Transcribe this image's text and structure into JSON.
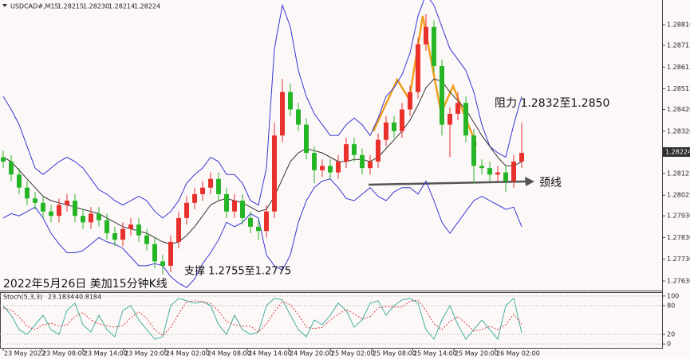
{
  "chart_data": [
    {
      "type": "candlestick",
      "title": "USDCAD#,M15",
      "quote": [
        1.28215,
        {
          "value": 1.2823,
          "label": "1.28230"
        },
        1.28214,
        1.28224
      ],
      "up_color": "#e8312c",
      "down_color": "#26b526",
      "open": [
        1.282,
        1.2818,
        1.2812,
        1.2806,
        1.2801,
        1.2799,
        1.2795,
        1.2793,
        1.2798,
        1.28,
        1.2793,
        1.279,
        1.2794,
        1.2791,
        1.2785,
        1.2782,
        1.2787,
        1.2789,
        1.2784,
        1.278,
        1.2772,
        1.277,
        1.2781,
        1.2792,
        1.2799,
        1.2803,
        1.2806,
        1.281,
        1.2803,
        1.2795,
        1.28,
        1.2792,
        1.2788,
        1.2786,
        1.2795,
        1.283,
        1.285,
        1.2842,
        1.2835,
        1.2822,
        1.2814,
        1.2816,
        1.2813,
        1.2818,
        1.2826,
        1.2821,
        1.2815,
        1.2818,
        1.2828,
        1.2836,
        1.2832,
        1.2842,
        1.285,
        1.2872,
        1.288,
        1.2862,
        1.2835,
        1.284,
        1.2845,
        1.283,
        1.2816,
        1.2815,
        1.2812,
        1.2813,
        1.2809,
        1.2818
      ],
      "high": [
        1.2823,
        1.2821,
        1.2815,
        1.2809,
        1.2804,
        1.2802,
        1.2798,
        1.2801,
        1.2803,
        1.2803,
        1.2796,
        1.2797,
        1.2797,
        1.2794,
        1.2788,
        1.279,
        1.2792,
        1.2792,
        1.2787,
        1.2783,
        1.2775,
        1.2784,
        1.2795,
        1.2802,
        1.2806,
        1.2809,
        1.2813,
        1.2813,
        1.2806,
        1.2803,
        1.2803,
        1.2795,
        1.2791,
        1.2798,
        1.2836,
        1.2856,
        1.2854,
        1.2845,
        1.2838,
        1.2825,
        1.2819,
        1.2819,
        1.2821,
        1.2829,
        1.2829,
        1.2824,
        1.2821,
        1.2831,
        1.2839,
        1.2839,
        1.2845,
        1.2853,
        1.2875,
        1.2886,
        1.2883,
        1.2865,
        1.2843,
        1.285,
        1.2848,
        1.2833,
        1.2819,
        1.2818,
        1.2816,
        1.2816,
        1.2821,
        1.2836
      ],
      "low": [
        1.2815,
        1.2809,
        1.2803,
        1.2798,
        1.2796,
        1.2792,
        1.279,
        1.279,
        1.2795,
        1.279,
        1.2787,
        1.2787,
        1.2788,
        1.2782,
        1.2779,
        1.2779,
        1.2784,
        1.2781,
        1.2777,
        1.2769,
        1.2766,
        1.2767,
        1.2778,
        1.2789,
        1.2796,
        1.28,
        1.2803,
        1.28,
        1.2792,
        1.2792,
        1.2789,
        1.2785,
        1.2782,
        1.2783,
        1.2792,
        1.2827,
        1.2839,
        1.2832,
        1.2819,
        1.2808,
        1.2811,
        1.281,
        1.281,
        1.2815,
        1.2818,
        1.2812,
        1.2812,
        1.2815,
        1.2825,
        1.2829,
        1.2829,
        1.2839,
        1.2847,
        1.2869,
        1.2859,
        1.283,
        1.282,
        1.2837,
        1.2827,
        1.2808,
        1.2812,
        1.2809,
        1.2809,
        1.2804,
        1.2806,
        1.2815
      ],
      "close": [
        1.2818,
        1.2812,
        1.2806,
        1.2801,
        1.2799,
        1.2795,
        1.2793,
        1.2798,
        1.28,
        1.2793,
        1.279,
        1.2794,
        1.2791,
        1.2785,
        1.2782,
        1.2787,
        1.2789,
        1.2784,
        1.278,
        1.2772,
        1.277,
        1.2781,
        1.2792,
        1.2799,
        1.2803,
        1.2806,
        1.281,
        1.2803,
        1.2795,
        1.28,
        1.2792,
        1.2788,
        1.2786,
        1.2795,
        1.283,
        1.285,
        1.2842,
        1.2835,
        1.2822,
        1.2814,
        1.2816,
        1.2813,
        1.2818,
        1.2826,
        1.2821,
        1.2815,
        1.2818,
        1.2828,
        1.2836,
        1.2832,
        1.2842,
        1.285,
        1.2872,
        1.288,
        1.2862,
        1.2835,
        1.284,
        1.2845,
        1.283,
        1.2816,
        1.2815,
        1.2812,
        1.2813,
        1.2809,
        1.2818,
        1.2822
      ],
      "bands": {
        "color": "#3636d4",
        "middle_color": "#333333",
        "upper": [
          1.2848,
          1.2842,
          1.2835,
          1.2825,
          1.2815,
          1.2812,
          1.2815,
          1.2818,
          1.282,
          1.2818,
          1.2815,
          1.281,
          1.2805,
          1.2803,
          1.28,
          1.2798,
          1.28,
          1.2802,
          1.28,
          1.2795,
          1.2792,
          1.2795,
          1.28,
          1.2808,
          1.2812,
          1.2815,
          1.282,
          1.2818,
          1.2812,
          1.2812,
          1.2808,
          1.28,
          1.2798,
          1.2815,
          1.287,
          1.289,
          1.288,
          1.286,
          1.2848,
          1.284,
          1.2835,
          1.283,
          1.283,
          1.2835,
          1.2838,
          1.2835,
          1.283,
          1.2838,
          1.2848,
          1.2852,
          1.2858,
          1.2868,
          1.2885,
          1.2895,
          1.289,
          1.288,
          1.287,
          1.2865,
          1.286,
          1.285,
          1.2835,
          1.2825,
          1.2822,
          1.282,
          1.2835,
          1.2848
        ],
        "middle": [
          1.282,
          1.2818,
          1.2814,
          1.281,
          1.2806,
          1.2802,
          1.28,
          1.2799,
          1.2798,
          1.2797,
          1.2796,
          1.2795,
          1.2794,
          1.2792,
          1.279,
          1.2788,
          1.2787,
          1.2786,
          1.2785,
          1.2783,
          1.2781,
          1.278,
          1.2781,
          1.2784,
          1.2788,
          1.2793,
          1.2798,
          1.28,
          1.2801,
          1.28,
          1.2799,
          1.2797,
          1.2795,
          1.2796,
          1.2802,
          1.281,
          1.2818,
          1.2822,
          1.2824,
          1.2823,
          1.2822,
          1.282,
          1.2818,
          1.2818,
          1.2819,
          1.2819,
          1.2818,
          1.282,
          1.2824,
          1.2828,
          1.2832,
          1.2837,
          1.2844,
          1.2852,
          1.2856,
          1.2855,
          1.285,
          1.2846,
          1.2842,
          1.2836,
          1.283,
          1.2825,
          1.282,
          1.2816,
          1.2816,
          1.2818
        ],
        "lower": [
          1.2792,
          1.2794,
          1.2793,
          1.2795,
          1.2797,
          1.2792,
          1.2785,
          1.278,
          1.2776,
          1.2776,
          1.2777,
          1.278,
          1.2783,
          1.2781,
          1.278,
          1.2778,
          1.2774,
          1.277,
          1.277,
          1.2771,
          1.277,
          1.2765,
          1.2762,
          1.276,
          1.2764,
          1.2771,
          1.2776,
          1.2782,
          1.279,
          1.2788,
          1.279,
          1.2794,
          1.2792,
          1.2775,
          1.277,
          1.2768,
          1.2775,
          1.279,
          1.28,
          1.2806,
          1.2809,
          1.281,
          1.2806,
          1.2801,
          1.28,
          1.2803,
          1.2806,
          1.2802,
          1.28,
          1.2804,
          1.2806,
          1.2806,
          1.2803,
          1.2809,
          1.28,
          1.279,
          1.2785,
          1.279,
          1.2795,
          1.28,
          1.2802,
          1.28,
          1.2798,
          1.2796,
          1.2797,
          1.2788
        ]
      },
      "ylim": [
        1.27586,
        1.28924
      ],
      "yticks": [
        {
          "value": 1.2881,
          "label": "1.28810"
        },
        1.28715,
        1.28615,
        1.28515,
        {
          "value": 1.2842,
          "label": "1.28420"
        },
        {
          "value": 1.2832,
          "label": "1.28320"
        },
        1.28125,
        1.28025,
        {
          "value": 1.2793,
          "label": "1.27930"
        },
        {
          "value": 1.2783,
          "label": "1.27830"
        },
        {
          "value": 1.2773,
          "label": "1.27730"
        },
        {
          "value": 1.2763,
          "label": "1.27630"
        }
      ],
      "xlim": [
        -0.4,
        82.6
      ],
      "xticks": [
        {
          "value": 0,
          "label": "23 May 2022"
        },
        {
          "value": 4.8,
          "label": "23 May 08:00"
        },
        {
          "value": 10,
          "label": "23 May 14:00"
        },
        {
          "value": 15.1,
          "label": "23 May 20:00"
        },
        {
          "value": 20.3,
          "label": "24 May 02:00"
        },
        {
          "value": 25.5,
          "label": "24 May 08:00"
        },
        {
          "value": 30.6,
          "label": "24 May 14:00"
        },
        {
          "value": 35.8,
          "label": "24 May 20:00"
        },
        {
          "value": 41,
          "label": "25 May 02:00"
        },
        {
          "value": 46.2,
          "label": "25 May 08:00"
        },
        {
          "value": 51.3,
          "label": "25 May 14:00"
        },
        {
          "value": 56.5,
          "label": "25 May 20:00"
        },
        {
          "value": 61.7,
          "label": "26 May 02:00"
        }
      ],
      "annotations": [
        "阻力 1.2832至1.2850",
        "颈线",
        "支撑 1.2755至1.2775",
        "2022年5月26日 美加15分钟K线"
      ]
    },
    {
      "type": "stochastic",
      "title": "Stoch(5,3,3)",
      "series": [
        {
          "color": "#3fb0a0",
          "values": [
            80,
            60,
            30,
            20,
            40,
            60,
            30,
            20,
            70,
            85,
            40,
            25,
            60,
            30,
            15,
            70,
            80,
            50,
            30,
            10,
            15,
            80,
            95,
            90,
            85,
            88,
            80,
            40,
            20,
            60,
            30,
            20,
            25,
            80,
            95,
            92,
            60,
            30,
            15,
            50,
            40,
            60,
            85,
            70,
            35,
            50,
            85,
            90,
            60,
            80,
            92,
            95,
            85,
            30,
            10,
            50,
            80,
            40,
            10,
            30,
            50,
            30,
            10,
            80,
            95,
            23.1834
          ]
        },
        {
          "color": "#d43c3c",
          "values": [
            75,
            70,
            57,
            37,
            30,
            40,
            43,
            37,
            40,
            58,
            65,
            50,
            42,
            38,
            35,
            38,
            55,
            67,
            53,
            30,
            18,
            35,
            63,
            88,
            90,
            88,
            84,
            69,
            47,
            40,
            37,
            37,
            25,
            42,
            67,
            89,
            82,
            61,
            35,
            32,
            35,
            50,
            62,
            72,
            63,
            52,
            57,
            75,
            78,
            77,
            77,
            89,
            91,
            70,
            42,
            30,
            47,
            57,
            43,
            27,
            30,
            37,
            30,
            40,
            62,
            40.8184
          ]
        }
      ],
      "ylim": [
        -8,
        108
      ],
      "yticks": [
        100,
        80,
        20,
        0
      ]
    }
  ]
}
